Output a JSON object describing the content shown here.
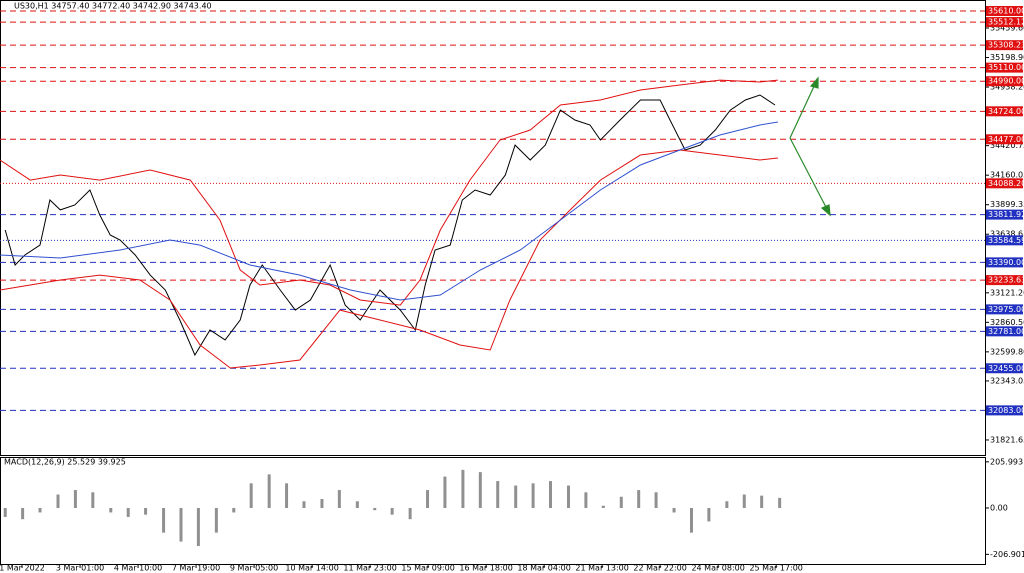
{
  "chart_data": [
    {
      "type": "line",
      "title": "US30,H1  34757.40 34772.40 34742.90 34743.40",
      "xlim": [
        -0.38,
        16.6
      ],
      "xticks": [
        {
          "value": 0,
          "label": "1 Mar 2022"
        },
        {
          "value": 1,
          "label": "3 Mar 01:00"
        },
        {
          "value": 2,
          "label": "4 Mar 10:00"
        },
        {
          "value": 3,
          "label": "7 Mar 19:00"
        },
        {
          "value": 4,
          "label": "9 Mar 05:00"
        },
        {
          "value": 5,
          "label": "10 Mar 14:00"
        },
        {
          "value": 6,
          "label": "11 Mar 23:00"
        },
        {
          "value": 7,
          "label": "15 Mar 09:00"
        },
        {
          "value": 8,
          "label": "16 Mar 18:00"
        },
        {
          "value": 9,
          "label": "18 Mar 04:00"
        },
        {
          "value": 10,
          "label": "21 Mar 13:00"
        },
        {
          "value": 11,
          "label": "22 Mar 22:00"
        },
        {
          "value": 12,
          "label": "24 Mar 08:00"
        },
        {
          "value": 13,
          "label": "25 Mar 17:00"
        }
      ],
      "ylim": [
        31689,
        35707
      ],
      "yticks": [
        {
          "value": 35459.6,
          "label": "35459.60"
        },
        {
          "value": 35198.9,
          "label": "35198.90"
        },
        {
          "value": 34938.2,
          "label": "34938.20"
        },
        {
          "value": 34420.75,
          "label": "34420.75"
        },
        {
          "value": 34160.05,
          "label": "34160.05"
        },
        {
          "value": 33899.35,
          "label": "33899.35"
        },
        {
          "value": 33638.65,
          "label": "33638.65"
        },
        {
          "value": 33121.2,
          "label": "33121.20"
        },
        {
          "value": 32860.5,
          "label": "32860.50"
        },
        {
          "value": 32599.8,
          "label": "32599.80"
        },
        {
          "value": 32343.05,
          "label": "32343.05"
        },
        {
          "value": 31821.65,
          "label": "31821.65"
        }
      ],
      "levels": [
        {
          "value": 35610,
          "label": "35610.00",
          "color": "#e01010",
          "dash": "6,4"
        },
        {
          "value": 35512.12,
          "label": "35512.12",
          "color": "#e01010",
          "dash": "6,4"
        },
        {
          "value": 35308.23,
          "label": "35308.23",
          "color": "#e01010",
          "dash": "6,4"
        },
        {
          "value": 35110,
          "label": "35110.00",
          "color": "#e01010",
          "dash": "6,4"
        },
        {
          "value": 34990,
          "label": "34990.00",
          "color": "#e01010",
          "dash": "6,4"
        },
        {
          "value": 34724,
          "label": "34724.00",
          "color": "#e01010",
          "dash": "6,4"
        },
        {
          "value": 34477,
          "label": "34477.00",
          "color": "#e01010",
          "dash": "6,4"
        },
        {
          "value": 34088.2,
          "label": "34088.20",
          "color": "#e01010",
          "dash": "1,2"
        },
        {
          "value": 33811.92,
          "label": "33811.92",
          "color": "#2030c0",
          "dash": "6,4"
        },
        {
          "value": 33584.59,
          "label": "33584.59",
          "color": "#2030c0",
          "dash": "1,2"
        },
        {
          "value": 33390,
          "label": "33390.00",
          "color": "#2030c0",
          "dash": "6,4"
        },
        {
          "value": 33233.63,
          "label": "33233.63",
          "color": "#e01010",
          "dash": "6,4"
        },
        {
          "value": 32975,
          "label": "32975.00",
          "color": "#2030c0",
          "dash": "6,4"
        },
        {
          "value": 32781,
          "label": "32781.00",
          "color": "#2030c0",
          "dash": "6,4"
        },
        {
          "value": 32455,
          "label": "32455.00",
          "color": "#2030c0",
          "dash": "6,4"
        },
        {
          "value": 32083,
          "label": "32083.00",
          "color": "#2030c0",
          "dash": "6,4"
        }
      ],
      "series": [
        {
          "color": "#000000",
          "x": [
            -0.29,
            -0.12,
            0.05,
            0.31,
            0.48,
            0.66,
            0.91,
            1.17,
            1.34,
            1.52,
            1.69,
            1.95,
            2.21,
            2.47,
            2.72,
            2.98,
            3.24,
            3.5,
            3.76,
            3.93,
            4.14,
            4.45,
            4.71,
            4.97,
            5.31,
            5.57,
            5.83,
            6.17,
            6.52,
            6.78,
            6.95,
            7.12,
            7.38,
            7.59,
            7.81,
            8.07,
            8.33,
            8.5,
            8.76,
            9.02,
            9.28,
            9.53,
            9.79,
            9.97,
            10.31,
            10.66,
            11.0,
            11.17,
            11.43,
            11.69,
            11.95,
            12.21,
            12.47,
            12.72,
            12.98
          ],
          "values": [
            33676,
            33367,
            33455,
            33543,
            33941,
            33853,
            33897,
            34029,
            33808,
            33632,
            33588,
            33455,
            33278,
            33146,
            32881,
            32572,
            32793,
            32705,
            32881,
            33190,
            33367,
            33146,
            32969,
            33058,
            33367,
            33013,
            32881,
            33146,
            32969,
            32793,
            33190,
            33499,
            33543,
            33941,
            34029,
            33985,
            34161,
            34426,
            34294,
            34426,
            34735,
            34647,
            34603,
            34471,
            34647,
            34824,
            34824,
            34647,
            34382,
            34426,
            34559,
            34735,
            34824,
            34868,
            34780
          ]
        },
        {
          "color": "#e01010",
          "x": [
            -0.38,
            0.14,
            0.66,
            1.34,
            2.21,
            2.9,
            3.41,
            3.76,
            4.1,
            4.79,
            5.31,
            5.83,
            6.52,
            6.86,
            7.21,
            7.72,
            8.24,
            8.76,
            9.28,
            9.97,
            10.66,
            11.34,
            12.03,
            12.72,
            13.03
          ],
          "values": [
            34294,
            34117,
            34162,
            34117,
            34206,
            34117,
            33764,
            33323,
            33190,
            33234,
            33190,
            33058,
            33013,
            33234,
            33676,
            34117,
            34471,
            34559,
            34780,
            34824,
            34912,
            34956,
            35000,
            34983,
            35000
          ]
        },
        {
          "color": "#e01010",
          "x": [
            -0.38,
            0.14,
            0.66,
            1.34,
            2.03,
            2.55,
            3.07,
            3.59,
            4.1,
            4.79,
            5.48,
            6.17,
            6.86,
            7.55,
            8.07,
            8.41,
            8.93,
            9.45,
            9.97,
            10.66,
            11.34,
            12.03,
            12.72,
            13.03
          ],
          "values": [
            33146,
            33190,
            33234,
            33278,
            33234,
            33058,
            32660,
            32457,
            32484,
            32528,
            32969,
            32881,
            32793,
            32660,
            32616,
            33058,
            33588,
            33853,
            34117,
            34338,
            34382,
            34338,
            34294,
            34312
          ]
        },
        {
          "color": "#3050d0",
          "x": [
            -0.38,
            0.66,
            1.69,
            2.55,
            3.07,
            3.93,
            4.79,
            5.66,
            6.52,
            7.21,
            7.9,
            8.59,
            9.28,
            9.97,
            10.66,
            11.34,
            12.03,
            12.72,
            13.03
          ],
          "values": [
            33455,
            33429,
            33499,
            33588,
            33543,
            33367,
            33278,
            33146,
            33058,
            33102,
            33323,
            33499,
            33764,
            34029,
            34250,
            34382,
            34515,
            34603,
            34630
          ]
        }
      ]
    },
    {
      "type": "bar",
      "title": "MACD(12,26,9) 25.529 39.925",
      "ylim": [
        -250,
        223
      ],
      "yticks": [
        {
          "value": 205.993,
          "label": "205.993"
        },
        {
          "value": 0,
          "label": "0.00"
        },
        {
          "value": -206.901,
          "label": "-206.901"
        }
      ],
      "color": "#909090",
      "x": [
        -0.29,
        0.01,
        0.31,
        0.62,
        0.92,
        1.22,
        1.53,
        1.83,
        2.13,
        2.44,
        2.74,
        3.04,
        3.35,
        3.65,
        3.95,
        4.26,
        4.56,
        4.86,
        5.17,
        5.47,
        5.78,
        6.08,
        6.38,
        6.69,
        6.99,
        7.29,
        7.6,
        7.9,
        8.2,
        8.51,
        8.81,
        9.11,
        9.42,
        9.72,
        10.02,
        10.33,
        10.63,
        10.93,
        11.24,
        11.54,
        11.84,
        12.15,
        12.45,
        12.75,
        13.06
      ],
      "values": [
        -40,
        -50,
        -20,
        60,
        80,
        70,
        -20,
        -40,
        -30,
        -110,
        -150,
        -170,
        -110,
        -20,
        110,
        150,
        110,
        30,
        40,
        80,
        30,
        -10,
        -30,
        -50,
        80,
        140,
        170,
        160,
        120,
        100,
        110,
        120,
        100,
        70,
        10,
        50,
        80,
        70,
        -20,
        -110,
        -60,
        30,
        60,
        55,
        45
      ]
    }
  ]
}
